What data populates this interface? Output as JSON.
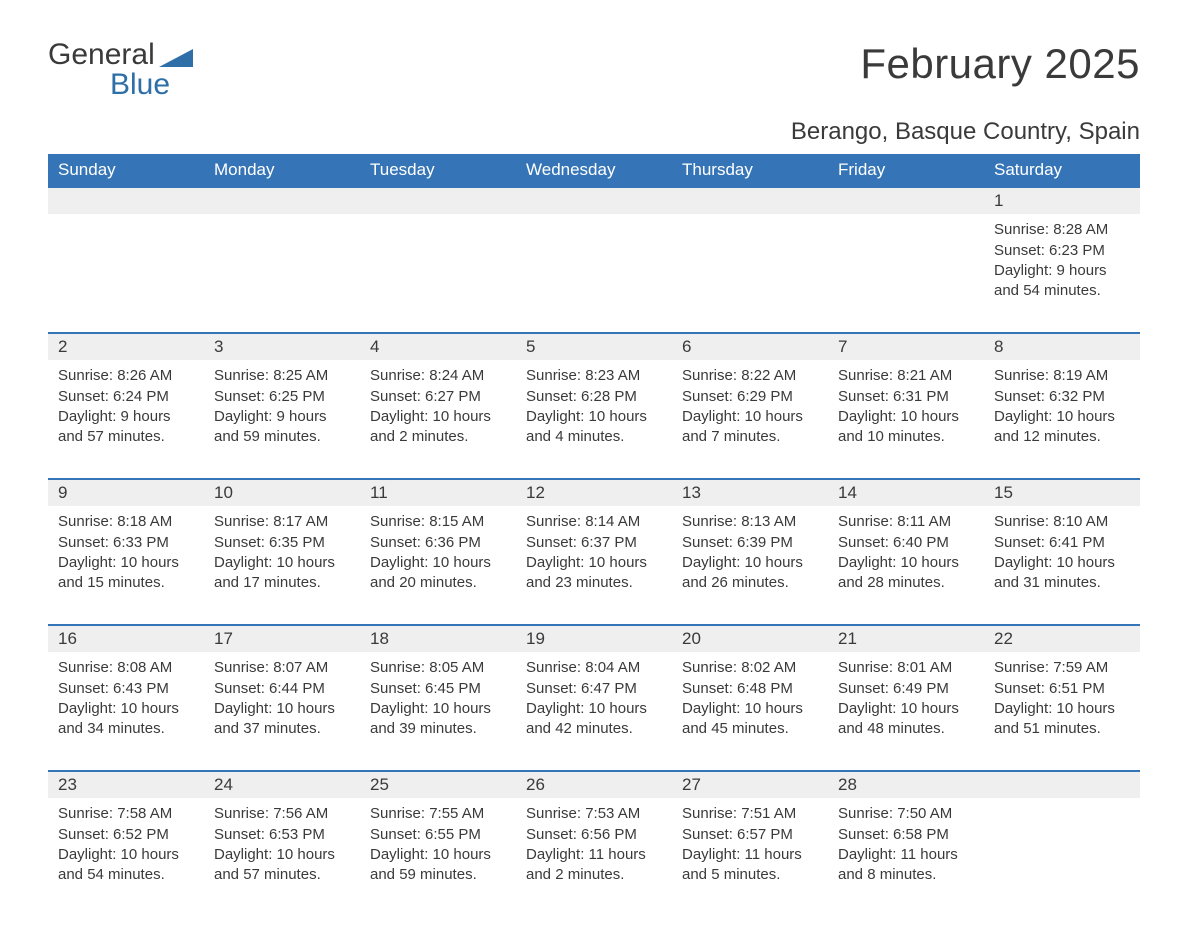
{
  "logo": {
    "general": "General",
    "blue": "Blue"
  },
  "title": "February 2025",
  "location": "Berango, Basque Country, Spain",
  "colors": {
    "header_bg": "#3575b7",
    "header_text": "#ffffff",
    "daynum_bg": "#efefef",
    "border_top": "#3575b7",
    "body_text": "#3a3a3a",
    "page_bg": "#ffffff",
    "logo_accent": "#2e6fa8"
  },
  "weekdays": [
    "Sunday",
    "Monday",
    "Tuesday",
    "Wednesday",
    "Thursday",
    "Friday",
    "Saturday"
  ],
  "weeks": [
    [
      null,
      null,
      null,
      null,
      null,
      null,
      {
        "d": "1",
        "sr": "Sunrise: 8:28 AM",
        "ss": "Sunset: 6:23 PM",
        "dl": "Daylight: 9 hours and 54 minutes."
      }
    ],
    [
      {
        "d": "2",
        "sr": "Sunrise: 8:26 AM",
        "ss": "Sunset: 6:24 PM",
        "dl": "Daylight: 9 hours and 57 minutes."
      },
      {
        "d": "3",
        "sr": "Sunrise: 8:25 AM",
        "ss": "Sunset: 6:25 PM",
        "dl": "Daylight: 9 hours and 59 minutes."
      },
      {
        "d": "4",
        "sr": "Sunrise: 8:24 AM",
        "ss": "Sunset: 6:27 PM",
        "dl": "Daylight: 10 hours and 2 minutes."
      },
      {
        "d": "5",
        "sr": "Sunrise: 8:23 AM",
        "ss": "Sunset: 6:28 PM",
        "dl": "Daylight: 10 hours and 4 minutes."
      },
      {
        "d": "6",
        "sr": "Sunrise: 8:22 AM",
        "ss": "Sunset: 6:29 PM",
        "dl": "Daylight: 10 hours and 7 minutes."
      },
      {
        "d": "7",
        "sr": "Sunrise: 8:21 AM",
        "ss": "Sunset: 6:31 PM",
        "dl": "Daylight: 10 hours and 10 minutes."
      },
      {
        "d": "8",
        "sr": "Sunrise: 8:19 AM",
        "ss": "Sunset: 6:32 PM",
        "dl": "Daylight: 10 hours and 12 minutes."
      }
    ],
    [
      {
        "d": "9",
        "sr": "Sunrise: 8:18 AM",
        "ss": "Sunset: 6:33 PM",
        "dl": "Daylight: 10 hours and 15 minutes."
      },
      {
        "d": "10",
        "sr": "Sunrise: 8:17 AM",
        "ss": "Sunset: 6:35 PM",
        "dl": "Daylight: 10 hours and 17 minutes."
      },
      {
        "d": "11",
        "sr": "Sunrise: 8:15 AM",
        "ss": "Sunset: 6:36 PM",
        "dl": "Daylight: 10 hours and 20 minutes."
      },
      {
        "d": "12",
        "sr": "Sunrise: 8:14 AM",
        "ss": "Sunset: 6:37 PM",
        "dl": "Daylight: 10 hours and 23 minutes."
      },
      {
        "d": "13",
        "sr": "Sunrise: 8:13 AM",
        "ss": "Sunset: 6:39 PM",
        "dl": "Daylight: 10 hours and 26 minutes."
      },
      {
        "d": "14",
        "sr": "Sunrise: 8:11 AM",
        "ss": "Sunset: 6:40 PM",
        "dl": "Daylight: 10 hours and 28 minutes."
      },
      {
        "d": "15",
        "sr": "Sunrise: 8:10 AM",
        "ss": "Sunset: 6:41 PM",
        "dl": "Daylight: 10 hours and 31 minutes."
      }
    ],
    [
      {
        "d": "16",
        "sr": "Sunrise: 8:08 AM",
        "ss": "Sunset: 6:43 PM",
        "dl": "Daylight: 10 hours and 34 minutes."
      },
      {
        "d": "17",
        "sr": "Sunrise: 8:07 AM",
        "ss": "Sunset: 6:44 PM",
        "dl": "Daylight: 10 hours and 37 minutes."
      },
      {
        "d": "18",
        "sr": "Sunrise: 8:05 AM",
        "ss": "Sunset: 6:45 PM",
        "dl": "Daylight: 10 hours and 39 minutes."
      },
      {
        "d": "19",
        "sr": "Sunrise: 8:04 AM",
        "ss": "Sunset: 6:47 PM",
        "dl": "Daylight: 10 hours and 42 minutes."
      },
      {
        "d": "20",
        "sr": "Sunrise: 8:02 AM",
        "ss": "Sunset: 6:48 PM",
        "dl": "Daylight: 10 hours and 45 minutes."
      },
      {
        "d": "21",
        "sr": "Sunrise: 8:01 AM",
        "ss": "Sunset: 6:49 PM",
        "dl": "Daylight: 10 hours and 48 minutes."
      },
      {
        "d": "22",
        "sr": "Sunrise: 7:59 AM",
        "ss": "Sunset: 6:51 PM",
        "dl": "Daylight: 10 hours and 51 minutes."
      }
    ],
    [
      {
        "d": "23",
        "sr": "Sunrise: 7:58 AM",
        "ss": "Sunset: 6:52 PM",
        "dl": "Daylight: 10 hours and 54 minutes."
      },
      {
        "d": "24",
        "sr": "Sunrise: 7:56 AM",
        "ss": "Sunset: 6:53 PM",
        "dl": "Daylight: 10 hours and 57 minutes."
      },
      {
        "d": "25",
        "sr": "Sunrise: 7:55 AM",
        "ss": "Sunset: 6:55 PM",
        "dl": "Daylight: 10 hours and 59 minutes."
      },
      {
        "d": "26",
        "sr": "Sunrise: 7:53 AM",
        "ss": "Sunset: 6:56 PM",
        "dl": "Daylight: 11 hours and 2 minutes."
      },
      {
        "d": "27",
        "sr": "Sunrise: 7:51 AM",
        "ss": "Sunset: 6:57 PM",
        "dl": "Daylight: 11 hours and 5 minutes."
      },
      {
        "d": "28",
        "sr": "Sunrise: 7:50 AM",
        "ss": "Sunset: 6:58 PM",
        "dl": "Daylight: 11 hours and 8 minutes."
      },
      null
    ]
  ]
}
